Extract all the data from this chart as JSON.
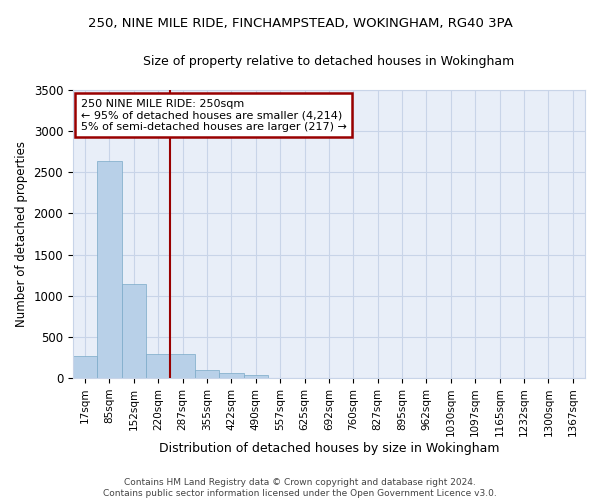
{
  "title1": "250, NINE MILE RIDE, FINCHAMPSTEAD, WOKINGHAM, RG40 3PA",
  "title2": "Size of property relative to detached houses in Wokingham",
  "xlabel": "Distribution of detached houses by size in Wokingham",
  "ylabel": "Number of detached properties",
  "footer1": "Contains HM Land Registry data © Crown copyright and database right 2024.",
  "footer2": "Contains public sector information licensed under the Open Government Licence v3.0.",
  "annotation_line1": "250 NINE MILE RIDE: 250sqm",
  "annotation_line2": "← 95% of detached houses are smaller (4,214)",
  "annotation_line3": "5% of semi-detached houses are larger (217) →",
  "bar_categories": [
    "17sqm",
    "85sqm",
    "152sqm",
    "220sqm",
    "287sqm",
    "355sqm",
    "422sqm",
    "490sqm",
    "557sqm",
    "625sqm",
    "692sqm",
    "760sqm",
    "827sqm",
    "895sqm",
    "962sqm",
    "1030sqm",
    "1097sqm",
    "1165sqm",
    "1232sqm",
    "1300sqm",
    "1367sqm"
  ],
  "bar_values": [
    270,
    2640,
    1140,
    290,
    290,
    95,
    55,
    35,
    0,
    0,
    0,
    0,
    0,
    0,
    0,
    0,
    0,
    0,
    0,
    0,
    0
  ],
  "bar_color": "#b8d0e8",
  "bar_edge_color": "#7aaac8",
  "vline_color": "#990000",
  "vline_x": 3.5,
  "ylim": [
    0,
    3500
  ],
  "yticks": [
    0,
    500,
    1000,
    1500,
    2000,
    2500,
    3000,
    3500
  ],
  "fig_bg": "#ffffff",
  "plot_bg": "#e8eef8",
  "grid_color": "#c8d4e8",
  "ann_box_color": "#990000",
  "ann_bg": "#ffffff",
  "title1_fontsize": 9.5,
  "title2_fontsize": 9,
  "ylabel_fontsize": 8.5,
  "xlabel_fontsize": 9,
  "tick_fontsize": 7.5,
  "ytick_fontsize": 8.5,
  "footer_fontsize": 6.5,
  "ann_fontsize": 8
}
